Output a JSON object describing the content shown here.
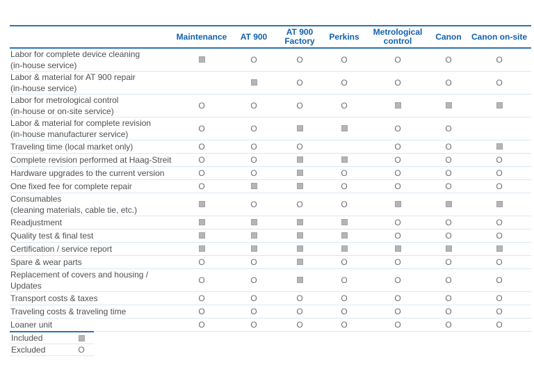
{
  "chart_data": {
    "type": "table",
    "columns": [
      "Maintenance",
      "AT 900",
      "AT 900 Factory",
      "Perkins",
      "Metrological control",
      "Canon",
      "Canon on-site"
    ],
    "rows": [
      {
        "label": "Labor for complete device cleaning",
        "sublabel": "(in-house service)",
        "cells": [
          "included",
          "excluded",
          "excluded",
          "excluded",
          "excluded",
          "excluded",
          "excluded"
        ]
      },
      {
        "label": "Labor & material for AT 900 repair",
        "sublabel": "(in-house service)",
        "cells": [
          "",
          "included",
          "excluded",
          "excluded",
          "excluded",
          "excluded",
          "excluded"
        ]
      },
      {
        "label": "Labor for metrological control",
        "sublabel": "(in-house or on-site service)",
        "cells": [
          "excluded",
          "excluded",
          "excluded",
          "excluded",
          "included",
          "included",
          "included"
        ]
      },
      {
        "label": "Labor & material for complete revision",
        "sublabel": "(in-house manufacturer service)",
        "cells": [
          "excluded",
          "excluded",
          "included",
          "included",
          "excluded",
          "excluded",
          ""
        ]
      },
      {
        "label": "Traveling time (local market only)",
        "sublabel": "",
        "cells": [
          "excluded",
          "excluded",
          "excluded",
          "",
          "excluded",
          "excluded",
          "included"
        ]
      },
      {
        "label": "Complete revision performed at Haag-Streit",
        "sublabel": "",
        "cells": [
          "excluded",
          "excluded",
          "included",
          "included",
          "excluded",
          "excluded",
          "excluded"
        ]
      },
      {
        "label": "Hardware upgrades to the current version",
        "sublabel": "",
        "cells": [
          "excluded",
          "excluded",
          "included",
          "excluded",
          "excluded",
          "excluded",
          "excluded"
        ]
      },
      {
        "label": "One fixed fee for complete repair",
        "sublabel": "",
        "cells": [
          "excluded",
          "included",
          "included",
          "excluded",
          "excluded",
          "excluded",
          "excluded"
        ]
      },
      {
        "label": "Consumables",
        "sublabel": "(cleaning materials, cable tie, etc.)",
        "cells": [
          "included",
          "excluded",
          "excluded",
          "excluded",
          "included",
          "included",
          "included"
        ]
      },
      {
        "label": "Readjustment",
        "sublabel": "",
        "cells": [
          "included",
          "included",
          "included",
          "included",
          "excluded",
          "excluded",
          "excluded"
        ]
      },
      {
        "label": "Quality test & final test",
        "sublabel": "",
        "cells": [
          "included",
          "included",
          "included",
          "included",
          "excluded",
          "excluded",
          "excluded"
        ]
      },
      {
        "label": "Certification / service report",
        "sublabel": "",
        "cells": [
          "included",
          "included",
          "included",
          "included",
          "included",
          "included",
          "included"
        ]
      },
      {
        "label": "Spare & wear parts",
        "sublabel": "",
        "cells": [
          "excluded",
          "excluded",
          "included",
          "excluded",
          "excluded",
          "excluded",
          "excluded"
        ]
      },
      {
        "label": "Replacement of covers and housing / Updates",
        "sublabel": "",
        "cells": [
          "excluded",
          "excluded",
          "included",
          "excluded",
          "excluded",
          "excluded",
          "excluded"
        ]
      },
      {
        "label": "Transport costs & taxes",
        "sublabel": "",
        "cells": [
          "excluded",
          "excluded",
          "excluded",
          "excluded",
          "excluded",
          "excluded",
          "excluded"
        ]
      },
      {
        "label": "Traveling costs & traveling time",
        "sublabel": "",
        "cells": [
          "excluded",
          "excluded",
          "excluded",
          "excluded",
          "excluded",
          "excluded",
          "excluded"
        ]
      },
      {
        "label": "Loaner unit",
        "sublabel": "",
        "cells": [
          "excluded",
          "excluded",
          "excluded",
          "excluded",
          "excluded",
          "excluded",
          "excluded"
        ]
      }
    ],
    "legend": {
      "included_label": "Included",
      "excluded_label": "Excluded",
      "included_symbol": "square",
      "excluded_symbol": "O"
    }
  },
  "colors": {
    "header_text_blue": "#1061ae",
    "rule_blue": "#2c72b8",
    "row_separator_blue": "#d9e8f6",
    "label_text_gray": "#4f4f51",
    "included_marker_gray": "#b5b5b6",
    "excluded_symbol_gray": "#6d6d6d"
  }
}
